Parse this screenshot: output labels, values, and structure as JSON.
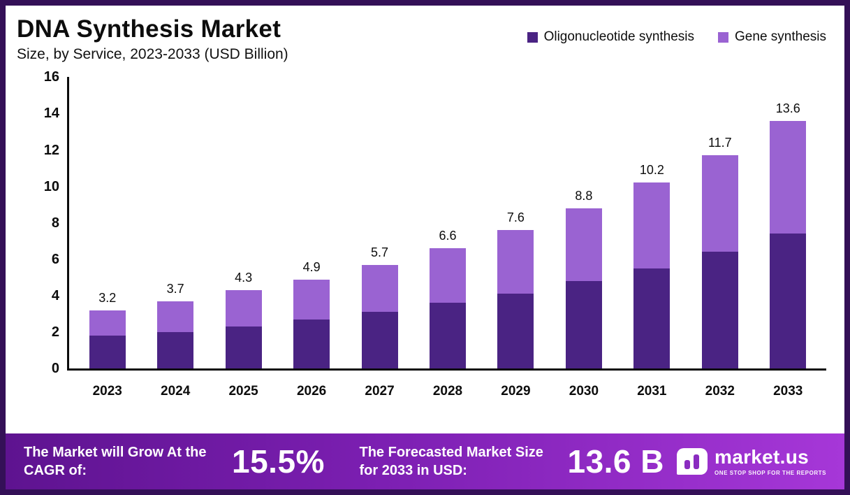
{
  "header": {
    "title": "DNA Synthesis Market",
    "subtitle": "Size, by Service, 2023-2033 (USD Billion)"
  },
  "legend": [
    {
      "label": "Oligonucleotide synthesis",
      "color": "#4a2383"
    },
    {
      "label": "Gene synthesis",
      "color": "#9a63d2"
    }
  ],
  "chart_data": {
    "type": "bar",
    "stacked": true,
    "title": "DNA Synthesis Market Size, by Service, 2023-2033 (USD Billion)",
    "categories": [
      "2023",
      "2024",
      "2025",
      "2026",
      "2027",
      "2028",
      "2029",
      "2030",
      "2031",
      "2032",
      "2033"
    ],
    "series": [
      {
        "name": "Oligonucleotide synthesis",
        "color": "#4a2383",
        "values": [
          1.8,
          2.0,
          2.3,
          2.7,
          3.1,
          3.6,
          4.1,
          4.8,
          5.5,
          6.4,
          7.4
        ]
      },
      {
        "name": "Gene synthesis",
        "color": "#9a63d2",
        "values": [
          1.4,
          1.7,
          2.0,
          2.2,
          2.6,
          3.0,
          3.5,
          4.0,
          4.7,
          5.3,
          6.2
        ]
      }
    ],
    "totals": [
      3.2,
      3.7,
      4.3,
      4.9,
      5.7,
      6.6,
      7.6,
      8.8,
      10.2,
      11.7,
      13.6
    ],
    "xlabel": "",
    "ylabel": "",
    "ylim": [
      0,
      16
    ],
    "yticks": [
      0,
      2,
      4,
      6,
      8,
      10,
      12,
      14,
      16
    ],
    "grid": false,
    "legend_position": "top-right"
  },
  "footer": {
    "cagr_label": "The Market will Grow At the CAGR of:",
    "cagr_value": "15.5%",
    "forecast_label": "The Forecasted Market Size for 2033 in USD:",
    "forecast_value": "13.6 B",
    "brand": "market.us",
    "brand_tagline": "ONE STOP SHOP FOR THE REPORTS"
  },
  "colors": {
    "frame": "#341057",
    "banner_gradient_start": "#5e1390",
    "banner_gradient_end": "#a637d8",
    "oligo_bar": "#4a2383",
    "gene_bar": "#9a63d2"
  }
}
